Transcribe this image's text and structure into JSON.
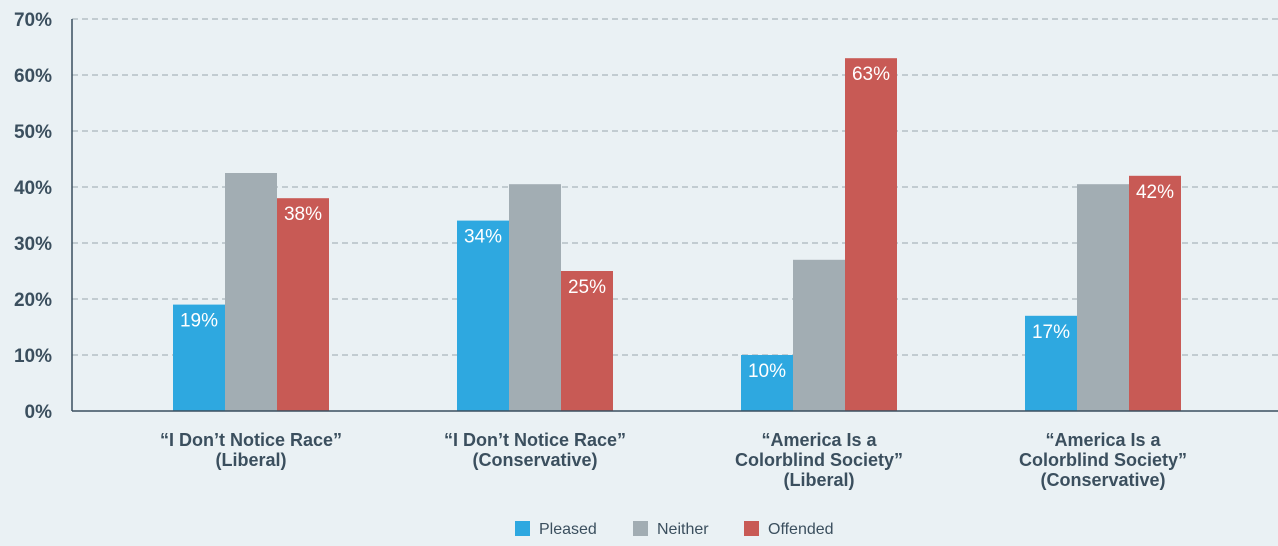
{
  "chart_data": {
    "type": "bar",
    "title": "",
    "xlabel": "",
    "ylabel": "",
    "ylim": [
      0,
      70
    ],
    "yticks": [
      "0%",
      "10%",
      "20%",
      "30%",
      "40%",
      "50%",
      "60%",
      "70%"
    ],
    "grid": true,
    "legend_position": "bottom",
    "categories": [
      [
        "“I Don’t Notice Race”",
        "(Liberal)"
      ],
      [
        "“I Don’t Notice Race”",
        "(Conservative)"
      ],
      [
        "“America Is a",
        "Colorblind Society”",
        "(Liberal)"
      ],
      [
        "“America Is a",
        "Colorblind Society”",
        "(Conservative)"
      ]
    ],
    "series": [
      {
        "name": "Pleased",
        "color": "#2ea8e0",
        "values": [
          19,
          34,
          10,
          17
        ],
        "labels": [
          "19%",
          "34%",
          "10%",
          "17%"
        ]
      },
      {
        "name": "Neither",
        "color": "#a2adb3",
        "values": [
          42.5,
          40.5,
          27,
          40.5
        ],
        "labels": [
          "",
          "",
          "",
          ""
        ]
      },
      {
        "name": "Offended",
        "color": "#c85a55",
        "values": [
          38,
          25,
          63,
          42
        ],
        "labels": [
          "38%",
          "25%",
          "63%",
          "42%"
        ]
      }
    ]
  }
}
